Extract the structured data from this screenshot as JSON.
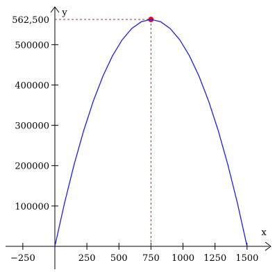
{
  "chart_data": {
    "type": "line",
    "title": "",
    "xlabel": "x",
    "ylabel": "y",
    "xlim": [
      -300,
      1650
    ],
    "ylim": [
      0,
      600000
    ],
    "x_ticks": [
      {
        "value": -250,
        "label": "−250"
      },
      {
        "value": 250,
        "label": "250"
      },
      {
        "value": 500,
        "label": "500"
      },
      {
        "value": 750,
        "label": "750"
      },
      {
        "value": 1000,
        "label": "1000"
      },
      {
        "value": 1250,
        "label": "1250"
      },
      {
        "value": 1500,
        "label": "1500"
      }
    ],
    "y_ticks": [
      {
        "value": 100000,
        "label": "100000"
      },
      {
        "value": 200000,
        "label": "200000"
      },
      {
        "value": 300000,
        "label": "300000"
      },
      {
        "value": 400000,
        "label": "400000"
      },
      {
        "value": 500000,
        "label": "500000"
      }
    ],
    "series": [
      {
        "color": "#1a1aff",
        "x": [
          0,
          75,
          150,
          225,
          300,
          375,
          450,
          525,
          600,
          675,
          750,
          825,
          900,
          975,
          1050,
          1125,
          1200,
          1275,
          1350,
          1425,
          1500
        ],
        "y": [
          0,
          106875,
          202500,
          286875,
          360000,
          421875,
          472500,
          511875,
          540000,
          556875,
          562500,
          556875,
          540000,
          511875,
          472500,
          421875,
          360000,
          286875,
          202500,
          106875,
          0
        ]
      }
    ],
    "annotations": [
      {
        "type": "max-point",
        "x": 750,
        "y": 562500,
        "label": "562,500",
        "color": "#ee1111"
      }
    ],
    "grid": false
  }
}
